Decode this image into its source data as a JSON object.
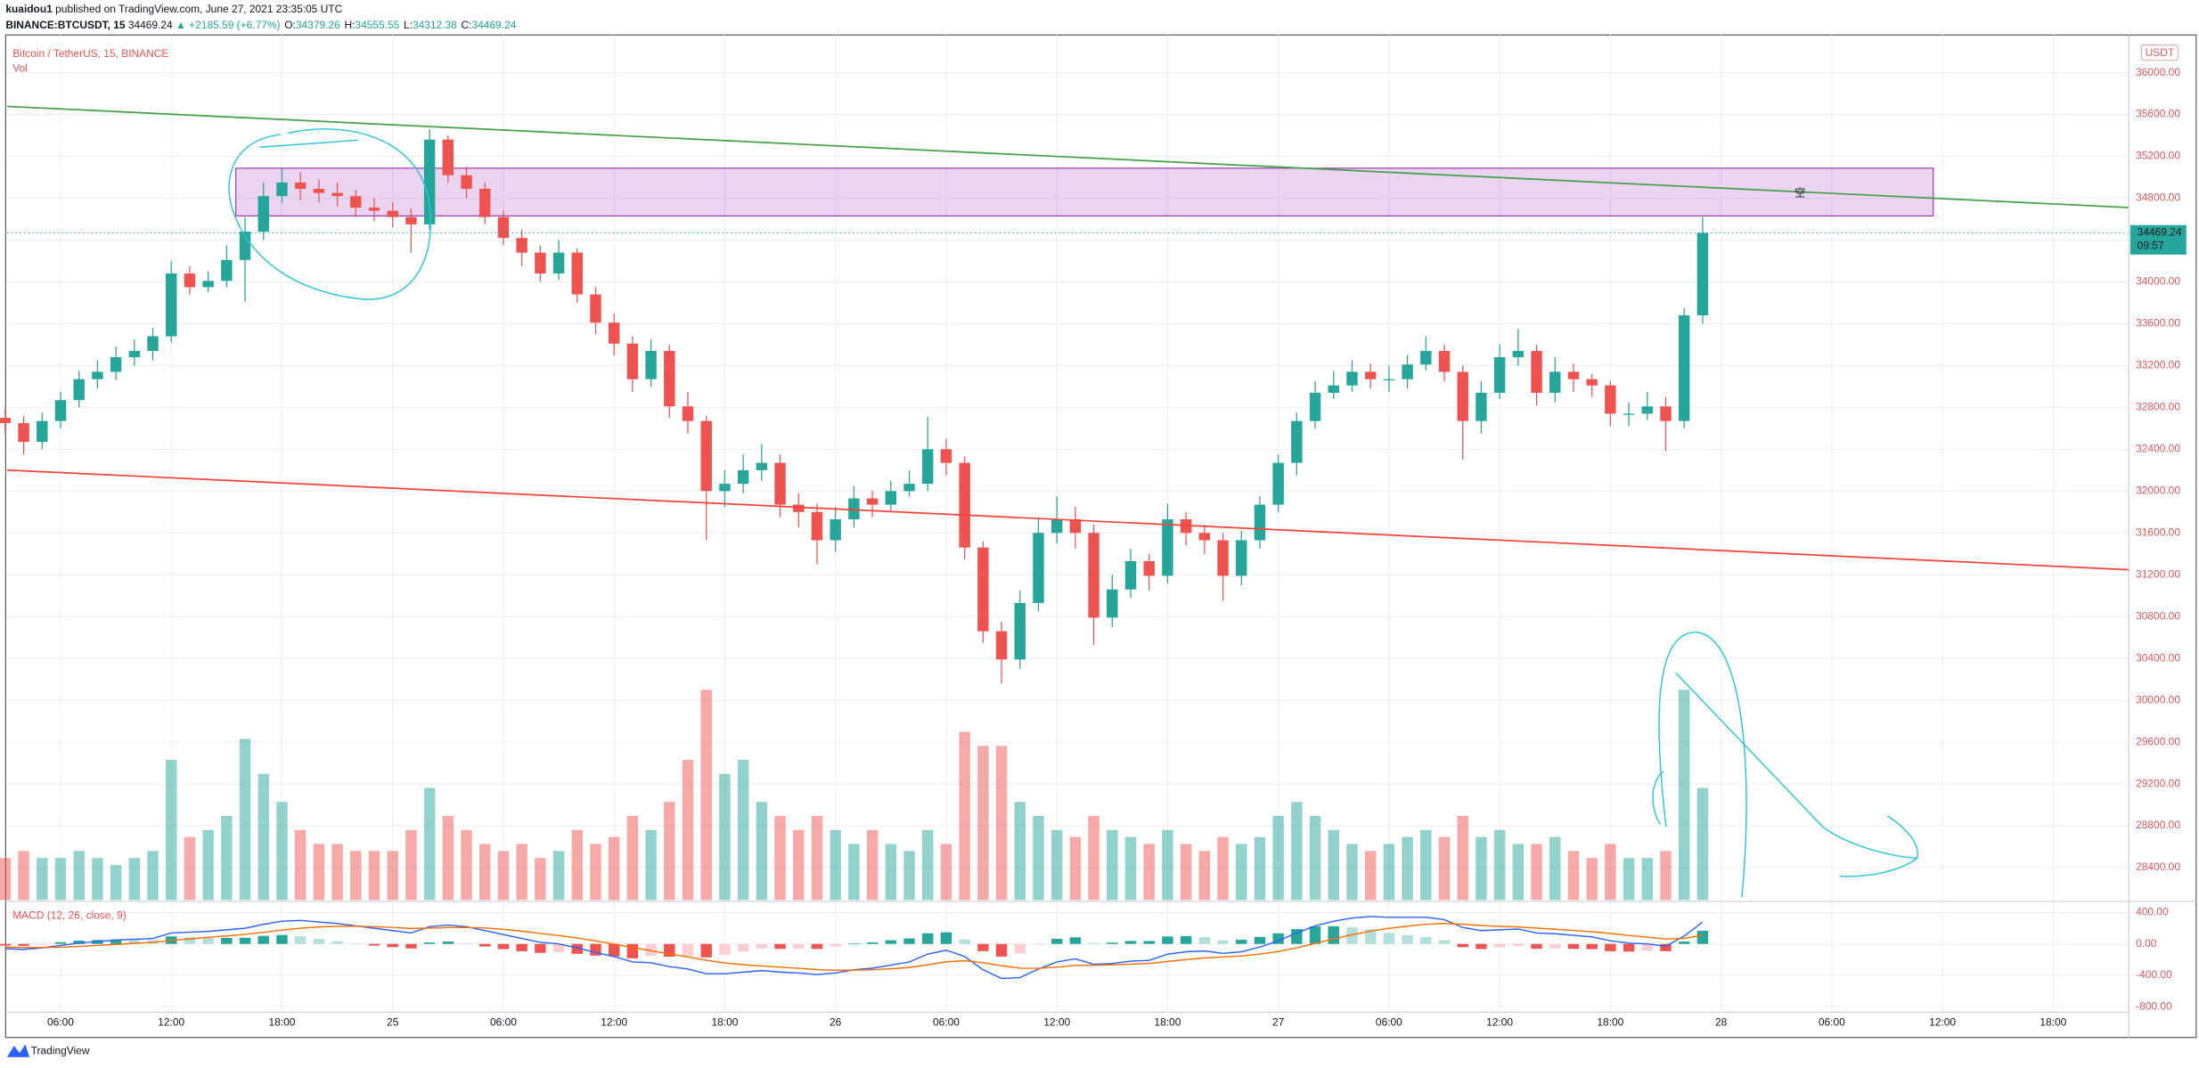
{
  "header": {
    "author": "kuaidou1",
    "published": "published on TradingView.com, June 27, 2021 23:35:05 UTC",
    "symbol": "BINANCE:BTCUSDT, 15",
    "price": "34469.24",
    "change": "▲ +2185.59 (+6.77%)",
    "ohlc": [
      {
        "label": "O:",
        "value": 34379.26
      },
      {
        "label": "H:",
        "value": 34555.55
      },
      {
        "label": "L:",
        "value": 34312.38
      },
      {
        "label": "C:",
        "value": 34469.24
      }
    ]
  },
  "chart_data": [
    {
      "type": "candlestick",
      "title": "Bitcoin / TetherUS, 15, BINANCE",
      "currency": "USDT",
      "grid": true,
      "up_color": "#26a69a",
      "down_color": "#ef5350",
      "x": [
        3,
        4,
        5,
        6,
        7,
        8,
        9,
        10,
        11,
        12,
        13,
        14,
        15,
        16,
        17,
        18,
        19,
        20,
        21,
        22,
        23,
        24,
        25,
        26,
        27,
        28,
        29,
        30,
        31,
        32,
        33,
        34,
        35,
        36,
        37,
        38,
        39,
        40,
        41,
        42,
        43,
        44,
        45,
        46,
        47,
        48,
        49,
        50,
        51,
        52,
        53,
        54,
        55,
        56,
        57,
        58,
        59,
        60,
        61,
        62,
        63,
        64,
        65,
        66,
        67,
        68,
        69,
        70,
        71,
        72,
        73,
        74,
        75,
        76,
        77,
        78,
        79,
        80,
        81,
        82,
        83,
        84,
        85,
        86,
        87,
        88,
        89,
        90,
        91,
        92,
        93,
        94,
        95
      ],
      "xlim": [
        3.1,
        118.1
      ],
      "xticks": [
        {
          "value": 6,
          "label": "06:00"
        },
        {
          "value": 12,
          "label": "12:00"
        },
        {
          "value": 18,
          "label": "18:00"
        },
        {
          "value": 24,
          "label": "25"
        },
        {
          "value": 30,
          "label": "06:00"
        },
        {
          "value": 36,
          "label": "12:00"
        },
        {
          "value": 42,
          "label": "18:00"
        },
        {
          "value": 48,
          "label": "26"
        },
        {
          "value": 54,
          "label": "06:00"
        },
        {
          "value": 60,
          "label": "12:00"
        },
        {
          "value": 66,
          "label": "18:00"
        },
        {
          "value": 72,
          "label": "27"
        },
        {
          "value": 78,
          "label": "06:00"
        },
        {
          "value": 84,
          "label": "12:00"
        },
        {
          "value": 90,
          "label": "18:00"
        },
        {
          "value": 96,
          "label": "28"
        },
        {
          "value": 102,
          "label": "06:00"
        },
        {
          "value": 108,
          "label": "12:00"
        },
        {
          "value": 114,
          "label": "18:00"
        }
      ],
      "open": [
        32700,
        32650,
        32470,
        32670,
        32870,
        33070,
        33140,
        33280,
        33340,
        33480,
        34080,
        33950,
        34010,
        34210,
        34480,
        34820,
        34950,
        34890,
        34850,
        34820,
        34710,
        34680,
        34620,
        34550,
        35360,
        35020,
        34890,
        34620,
        34420,
        34280,
        34080,
        34280,
        33880,
        33610,
        33410,
        33070,
        33340,
        32810,
        32670,
        32000,
        32070,
        32200,
        32270,
        31870,
        31800,
        31530,
        31730,
        31930,
        31870,
        32000,
        32070,
        32400,
        32270,
        31460,
        30660,
        30390,
        30930,
        31600,
        31730,
        31600,
        30790,
        31060,
        31330,
        31190,
        31730,
        31600,
        31530,
        31190,
        31530,
        31870,
        32270,
        32670,
        32940,
        33010,
        33140,
        33070,
        33070,
        33210,
        33340,
        33140,
        32670,
        32940,
        33280,
        33340,
        32940,
        33140,
        33070,
        33010,
        32740,
        32740,
        32810,
        32670,
        33680
      ],
      "high": [
        32800,
        32720,
        32750,
        32950,
        33150,
        33250,
        33380,
        33450,
        33560,
        34200,
        34150,
        34100,
        34350,
        34620,
        34950,
        35080,
        35050,
        34980,
        34950,
        34880,
        34800,
        34760,
        34700,
        35460,
        35400,
        35100,
        34950,
        34680,
        34500,
        34350,
        34400,
        34320,
        33950,
        33700,
        33480,
        33450,
        33400,
        32950,
        32720,
        32200,
        32350,
        32450,
        32350,
        31980,
        31880,
        31850,
        32050,
        32000,
        32100,
        32200,
        32710,
        32500,
        32330,
        31520,
        30750,
        31050,
        31750,
        31950,
        31850,
        31680,
        31200,
        31450,
        31400,
        31880,
        31800,
        31680,
        31600,
        31620,
        31950,
        32350,
        32750,
        33050,
        33150,
        33250,
        33220,
        33200,
        33300,
        33480,
        33400,
        33200,
        33050,
        33400,
        33550,
        33400,
        33280,
        33220,
        33120,
        33050,
        32850,
        32950,
        32900,
        33750,
        34620
      ],
      "low": [
        32550,
        32350,
        32400,
        32600,
        32800,
        32980,
        33060,
        33200,
        33250,
        33420,
        33880,
        33900,
        33950,
        33810,
        34400,
        34750,
        34780,
        34760,
        34720,
        34620,
        34580,
        34520,
        34280,
        34500,
        34950,
        34800,
        34550,
        34350,
        34150,
        34000,
        34020,
        33800,
        33500,
        33300,
        32950,
        33000,
        32700,
        32550,
        31530,
        31850,
        31980,
        32100,
        31750,
        31650,
        31300,
        31420,
        31650,
        31750,
        31800,
        31950,
        32000,
        32150,
        31350,
        30550,
        30160,
        30300,
        30850,
        31500,
        31450,
        30530,
        30700,
        30980,
        31050,
        31120,
        31480,
        31400,
        30950,
        31100,
        31450,
        31800,
        32150,
        32600,
        32880,
        32950,
        32980,
        32950,
        32980,
        33150,
        33050,
        32300,
        32550,
        32880,
        33200,
        32820,
        32850,
        32950,
        32900,
        32620,
        32620,
        32680,
        32380,
        32600,
        33600
      ],
      "close": [
        32650,
        32470,
        32670,
        32870,
        33070,
        33140,
        33280,
        33340,
        33480,
        34080,
        33950,
        34010,
        34210,
        34480,
        34820,
        34950,
        34890,
        34850,
        34820,
        34710,
        34680,
        34620,
        34550,
        35360,
        35020,
        34890,
        34620,
        34420,
        34280,
        34080,
        34280,
        33880,
        33610,
        33410,
        33070,
        33340,
        32810,
        32670,
        32000,
        32070,
        32200,
        32270,
        31870,
        31800,
        31530,
        31730,
        31930,
        31870,
        32000,
        32070,
        32400,
        32270,
        31460,
        30660,
        30390,
        30930,
        31600,
        31730,
        31600,
        30790,
        31060,
        31330,
        31190,
        31730,
        31600,
        31530,
        31190,
        31530,
        31870,
        32270,
        32670,
        32940,
        33010,
        33140,
        33070,
        33070,
        33210,
        33340,
        33140,
        32670,
        32940,
        33280,
        33340,
        32940,
        33140,
        33070,
        33010,
        32740,
        32740,
        32810,
        32670,
        33680,
        34469.24
      ],
      "ylim": [
        28090,
        36360
      ],
      "yticks": [
        {
          "value": 28400,
          "label": "28400.00"
        },
        {
          "value": 28800,
          "label": "28800.00"
        },
        {
          "value": 29200,
          "label": "29200.00"
        },
        {
          "value": 29600,
          "label": "29600.00"
        },
        {
          "value": 30000,
          "label": "30000.00"
        },
        {
          "value": 30400,
          "label": "30400.00"
        },
        {
          "value": 30800,
          "label": "30800.00"
        },
        {
          "value": 31200,
          "label": "31200.00"
        },
        {
          "value": 31600,
          "label": "31600.00"
        },
        {
          "value": 32000,
          "label": "32000.00"
        },
        {
          "value": 32400,
          "label": "32400.00"
        },
        {
          "value": 32800,
          "label": "32800.00"
        },
        {
          "value": 33200,
          "label": "33200.00"
        },
        {
          "value": 33600,
          "label": "33600.00"
        },
        {
          "value": 34000,
          "label": "34000.00"
        },
        {
          "value": 34400,
          "label": "34400.00"
        },
        {
          "value": 34800,
          "label": "34800.00"
        },
        {
          "value": 35200,
          "label": "35200.00"
        },
        {
          "value": 35600,
          "label": "35600.00"
        },
        {
          "value": 36000,
          "label": "36000.00"
        }
      ],
      "volume": {
        "name": "Vol",
        "ylim": [
          0,
          6170
        ],
        "values": [
          300,
          350,
          300,
          300,
          350,
          300,
          250,
          300,
          350,
          1000,
          450,
          500,
          600,
          1150,
          900,
          700,
          500,
          400,
          400,
          350,
          350,
          350,
          500,
          800,
          600,
          500,
          400,
          350,
          400,
          300,
          350,
          500,
          400,
          450,
          600,
          500,
          700,
          1000,
          1500,
          900,
          1000,
          700,
          600,
          500,
          600,
          500,
          400,
          500,
          400,
          350,
          500,
          400,
          1200,
          1100,
          1100,
          700,
          600,
          500,
          450,
          600,
          500,
          450,
          400,
          500,
          400,
          350,
          450,
          400,
          450,
          600,
          700,
          600,
          500,
          400,
          350,
          400,
          450,
          500,
          450,
          600,
          450,
          500,
          400,
          400,
          450,
          350,
          300,
          400,
          300,
          300,
          350,
          1500,
          800
        ]
      },
      "last_price": 34469.24,
      "countdown": "09:57",
      "trendlines": [
        {
          "color": "#43a047",
          "x": [
            3.1,
            118.1
          ],
          "y": [
            35678,
            34711
          ]
        },
        {
          "color": "#f44336",
          "x": [
            3.1,
            118.1
          ],
          "y": [
            32201,
            31248
          ]
        }
      ],
      "zone": {
        "x": [
          15.5,
          107.5
        ],
        "y": [
          34631,
          35087
        ],
        "color": "#9c27b0",
        "label": "空"
      }
    },
    {
      "type": "macd",
      "title": "MACD (12, 26, close, 9)",
      "x": [
        3,
        4,
        5,
        6,
        7,
        8,
        9,
        10,
        11,
        12,
        13,
        14,
        15,
        16,
        17,
        18,
        19,
        20,
        21,
        22,
        23,
        24,
        25,
        26,
        27,
        28,
        29,
        30,
        31,
        32,
        33,
        34,
        35,
        36,
        37,
        38,
        39,
        40,
        41,
        42,
        43,
        44,
        45,
        46,
        47,
        48,
        49,
        50,
        51,
        52,
        53,
        54,
        55,
        56,
        57,
        58,
        59,
        60,
        61,
        62,
        63,
        64,
        65,
        66,
        67,
        68,
        69,
        70,
        71,
        72,
        73,
        74,
        75,
        76,
        77,
        78,
        79,
        80,
        81,
        82,
        83,
        84,
        85,
        86,
        87,
        88,
        89,
        90,
        91,
        92,
        93,
        94,
        95
      ],
      "macd_color": "#2962ff",
      "signal_color": "#ff6d00",
      "macd": [
        -60,
        -70,
        -50,
        -20,
        10,
        30,
        50,
        60,
        70,
        140,
        150,
        160,
        180,
        200,
        250,
        290,
        300,
        280,
        260,
        230,
        200,
        170,
        140,
        220,
        240,
        220,
        170,
        120,
        70,
        20,
        0,
        -50,
        -110,
        -160,
        -230,
        -240,
        -290,
        -320,
        -380,
        -380,
        -360,
        -340,
        -360,
        -370,
        -390,
        -370,
        -330,
        -310,
        -270,
        -230,
        -130,
        -80,
        -160,
        -330,
        -440,
        -430,
        -320,
        -230,
        -190,
        -260,
        -250,
        -220,
        -210,
        -130,
        -100,
        -90,
        -120,
        -100,
        -40,
        40,
        140,
        230,
        290,
        330,
        350,
        340,
        340,
        340,
        310,
        210,
        170,
        180,
        190,
        140,
        130,
        110,
        90,
        40,
        10,
        0,
        -30,
        100,
        280
      ],
      "signal": [
        -40,
        -45,
        -47,
        -42,
        -32,
        -20,
        -6,
        8,
        20,
        44,
        65,
        84,
        103,
        122,
        148,
        176,
        201,
        217,
        225,
        226,
        221,
        211,
        197,
        202,
        209,
        211,
        203,
        186,
        163,
        134,
        107,
        76,
        39,
        -1,
        -47,
        -86,
        -127,
        -166,
        -209,
        -243,
        -266,
        -281,
        -297,
        -311,
        -327,
        -335,
        -334,
        -329,
        -317,
        -300,
        -266,
        -229,
        -215,
        -238,
        -279,
        -309,
        -311,
        -295,
        -274,
        -271,
        -267,
        -258,
        -248,
        -225,
        -200,
        -178,
        -166,
        -153,
        -130,
        -96,
        -49,
        7,
        64,
        117,
        164,
        199,
        227,
        250,
        262,
        251,
        235,
        224,
        217,
        202,
        187,
        172,
        156,
        133,
        108,
        87,
        63,
        70,
        112
      ],
      "histogram": [
        -20,
        -25,
        -3,
        22,
        42,
        50,
        56,
        52,
        50,
        96,
        85,
        76,
        77,
        78,
        102,
        114,
        99,
        63,
        35,
        4,
        -21,
        -41,
        -57,
        18,
        31,
        9,
        -33,
        -66,
        -93,
        -114,
        -107,
        -126,
        -149,
        -159,
        -183,
        -154,
        -163,
        -154,
        -171,
        -137,
        -94,
        -59,
        -63,
        -59,
        -63,
        -35,
        4,
        19,
        47,
        70,
        136,
        149,
        55,
        -92,
        -161,
        -121,
        -9,
        65,
        84,
        11,
        17,
        38,
        38,
        95,
        100,
        88,
        46,
        53,
        90,
        136,
        189,
        223,
        226,
        213,
        186,
        141,
        113,
        90,
        48,
        -41,
        -65,
        -44,
        -27,
        -62,
        -57,
        -62,
        -66,
        -93,
        -98,
        -87,
        -93,
        30,
        168
      ],
      "ylim": [
        -871,
        542
      ],
      "yticks": [
        {
          "value": 400,
          "label": "400.00"
        },
        {
          "value": 0,
          "label": "0.00"
        },
        {
          "value": -400,
          "label": "-400.00"
        },
        {
          "value": -800,
          "label": "-800.00"
        }
      ]
    }
  ],
  "footer": {
    "brand": "TradingView"
  }
}
